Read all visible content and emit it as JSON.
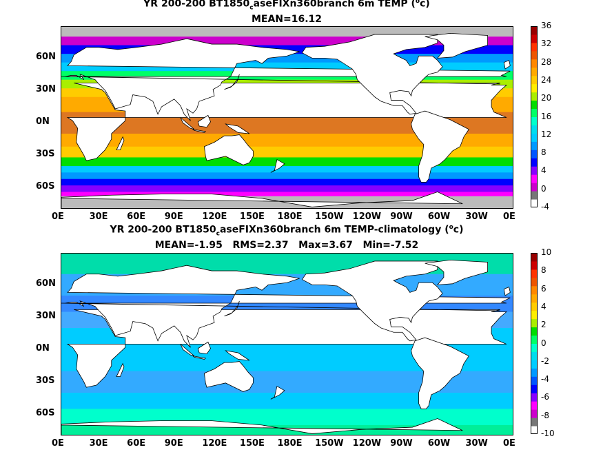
{
  "chart_data": [
    {
      "type": "heatmap",
      "title_pre": "YR 200-200 BT1850",
      "title_sub": "c",
      "title_post": "aseFIXn360branch 6m TEMP (",
      "title_sup": "o",
      "title_end": "c)",
      "subtitle": "MEAN=16.12",
      "x_ticks": [
        "0E",
        "30E",
        "60E",
        "90E",
        "120E",
        "150E",
        "180E",
        "150W",
        "120W",
        "90W",
        "60W",
        "30W",
        "0E"
      ],
      "y_ticks": [
        "60N",
        "30N",
        "0N",
        "30S",
        "60S"
      ],
      "colorbar_ticks": [
        "36",
        "32",
        "28",
        "24",
        "20",
        "16",
        "12",
        "8",
        "4",
        "0",
        "-4"
      ],
      "colorbar_range": [
        -4,
        36
      ],
      "colorbar_colors": [
        "#ffffff",
        "#777777",
        "#cc00cc",
        "#ff00ff",
        "#8800ff",
        "#0000ff",
        "#0055ff",
        "#0099ff",
        "#00ccff",
        "#00ddee",
        "#00ffcc",
        "#00ff66",
        "#00dd00",
        "#aaee00",
        "#ffee00",
        "#ffcc00",
        "#ffaa00",
        "#ff8800",
        "#ee5500",
        "#ff3300",
        "#cc0000",
        "#990000"
      ]
    },
    {
      "type": "heatmap",
      "title_pre": "YR 200-200 BT1850",
      "title_sub": "c",
      "title_post": "aseFIXn360branch 6m TEMP-climatology (",
      "title_sup": "o",
      "title_end": "c)",
      "subtitle": "MEAN=-1.95   RMS=2.37   Max=3.67   Min=-7.52",
      "x_ticks": [
        "0E",
        "30E",
        "60E",
        "90E",
        "120E",
        "150E",
        "180E",
        "150W",
        "120W",
        "90W",
        "60W",
        "30W",
        "0E"
      ],
      "y_ticks": [
        "60N",
        "30N",
        "0N",
        "30S",
        "60S"
      ],
      "colorbar_ticks": [
        "10",
        "8",
        "6",
        "4",
        "2",
        "0",
        "-2",
        "-4",
        "-6",
        "-8",
        "-10"
      ],
      "colorbar_range": [
        -10,
        10
      ],
      "colorbar_colors": [
        "#ffffff",
        "#777777",
        "#cc00cc",
        "#ff00ff",
        "#8800ff",
        "#0000ff",
        "#0055ff",
        "#0099ff",
        "#00ccff",
        "#00ddee",
        "#00ffcc",
        "#00ff66",
        "#00dd00",
        "#aaee00",
        "#ffee00",
        "#ffcc00",
        "#ffaa00",
        "#ff8800",
        "#ee5500",
        "#ff3300",
        "#cc0000",
        "#990000"
      ]
    }
  ]
}
